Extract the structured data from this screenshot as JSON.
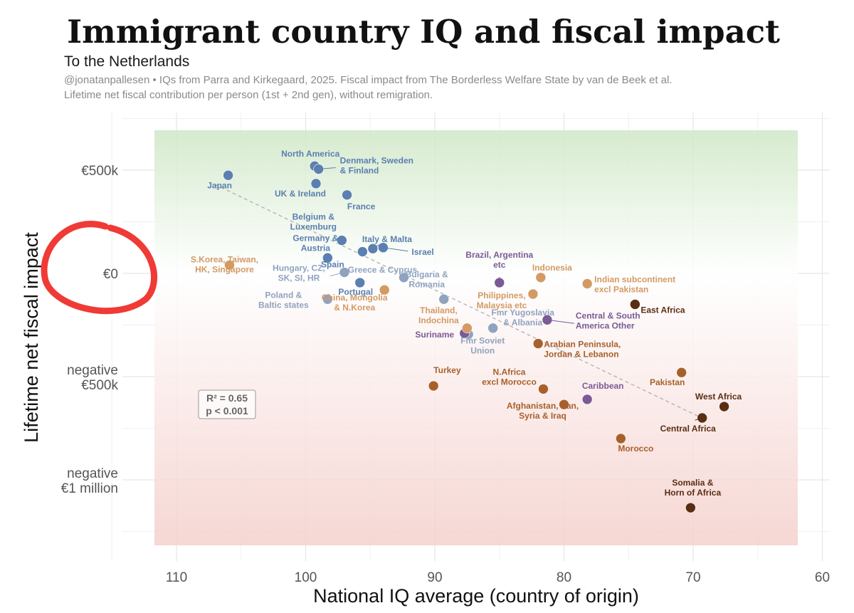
{
  "header": {
    "title": "Immigrant country IQ and fiscal impact",
    "subtitle": "To the Netherlands",
    "caption_line1": "@jonatanpallesen • IQs from Parra and Kirkegaard, 2025. Fiscal impact from The Borderless Welfare State by van de Beek et al.",
    "caption_line2": "Lifetime net fiscal contribution per person (1st + 2nd gen), without remigration."
  },
  "chart_data": {
    "type": "scatter",
    "title": "Immigrant country IQ and fiscal impact",
    "xlabel": "National IQ average (country of origin)",
    "ylabel": "Lifetime net fiscal impact",
    "xlim": [
      115,
      60
    ],
    "x_reversed": true,
    "ylim": [
      -1250,
      800
    ],
    "y_units": "thousand EUR",
    "x_ticks": [
      110,
      100,
      90,
      80,
      70,
      60
    ],
    "y_ticks": [
      {
        "value": 500,
        "label": [
          "€500k"
        ]
      },
      {
        "value": 0,
        "label": [
          "€0"
        ]
      },
      {
        "value": -500,
        "label": [
          "negative",
          "€500k"
        ]
      },
      {
        "value": -1000,
        "label": [
          "negative",
          "€1 million"
        ]
      }
    ],
    "background_bands": [
      {
        "name": "positive",
        "color": "#cfe7c6"
      },
      {
        "name": "negative",
        "color": "#f4d0cc"
      }
    ],
    "trendline": {
      "x": [
        107,
        69
      ],
      "y": [
        430,
        -710
      ],
      "style": "dashed"
    },
    "stats": {
      "r2": "R² = 0.65",
      "p": "p < 0.001"
    },
    "points": [
      {
        "label": [
          "Japan"
        ],
        "x": 106.0,
        "y": 475,
        "color": "#5b7fb0"
      },
      {
        "label": [
          "North America"
        ],
        "x": 99.3,
        "y": 520,
        "color": "#5b7fb0"
      },
      {
        "label": [
          "Denmark, Sweden",
          "& Finland"
        ],
        "x": 99.0,
        "y": 505,
        "color": "#5b7fb0"
      },
      {
        "label": [
          "UK & Ireland"
        ],
        "x": 99.2,
        "y": 435,
        "color": "#5b7fb0"
      },
      {
        "label": [
          "France"
        ],
        "x": 96.8,
        "y": 380,
        "color": "#5b7fb0"
      },
      {
        "label": [
          "Belgium &",
          "Luxemburg"
        ],
        "x": 97.2,
        "y": 160,
        "color": "#5b7fb0"
      },
      {
        "label": [
          "Italy & Malta"
        ],
        "x": 94.8,
        "y": 120,
        "color": "#5b7fb0"
      },
      {
        "label": [
          "Israel"
        ],
        "x": 94.0,
        "y": 125,
        "color": "#5b7fb0"
      },
      {
        "label": [
          "Germany &",
          "Austria"
        ],
        "x": 95.6,
        "y": 105,
        "color": "#5b7fb0"
      },
      {
        "label": [
          "Spain"
        ],
        "x": 98.3,
        "y": 75,
        "color": "#5b7fb0"
      },
      {
        "label": [
          "Portugal"
        ],
        "x": 95.8,
        "y": -45,
        "color": "#5b7fb0"
      },
      {
        "label": [
          "Greece & Cyprus"
        ],
        "x": 92.4,
        "y": -20,
        "color": "#8fa3bf"
      },
      {
        "label": [
          "Hungary, CZ,",
          "SK, SI, HR"
        ],
        "x": 97.0,
        "y": 5,
        "color": "#8fa3bf"
      },
      {
        "label": [
          "Poland &",
          "Baltic states"
        ],
        "x": 98.3,
        "y": -125,
        "color": "#8fa3bf"
      },
      {
        "label": [
          "Bulgaria &",
          "Romania"
        ],
        "x": 89.3,
        "y": -125,
        "color": "#8fa3bf"
      },
      {
        "label": [
          "Fmr Yugoslavia",
          "& Albania"
        ],
        "x": 85.5,
        "y": -265,
        "color": "#8fa3bf"
      },
      {
        "label": [
          "Fmr Soviet",
          "Union"
        ],
        "x": 87.4,
        "y": -295,
        "color": "#8fa3bf"
      },
      {
        "label": [
          "Brazil, Argentina",
          "etc"
        ],
        "x": 85.0,
        "y": -45,
        "color": "#7b5a96"
      },
      {
        "label": [
          "Central & South",
          "America Other"
        ],
        "x": 81.3,
        "y": -225,
        "color": "#7b5a96"
      },
      {
        "label": [
          "Suriname"
        ],
        "x": 87.7,
        "y": -290,
        "color": "#7b5a96"
      },
      {
        "label": [
          "Caribbean"
        ],
        "x": 78.2,
        "y": -610,
        "color": "#7b5a96"
      },
      {
        "label": [
          "S.Korea, Taiwan,",
          "HK, Singapore"
        ],
        "x": 105.9,
        "y": 40,
        "color": "#d39a63"
      },
      {
        "label": [
          "China, Mongolia",
          "& N.Korea"
        ],
        "x": 93.9,
        "y": -80,
        "color": "#d39a63"
      },
      {
        "label": [
          "Thailand,",
          "Indochina"
        ],
        "x": 87.5,
        "y": -265,
        "color": "#d39a63"
      },
      {
        "label": [
          "Indonesia"
        ],
        "x": 81.8,
        "y": -20,
        "color": "#d39a63"
      },
      {
        "label": [
          "Philippines,",
          "Malaysia etc"
        ],
        "x": 82.4,
        "y": -100,
        "color": "#d39a63"
      },
      {
        "label": [
          "Indian subcontinent",
          "excl Pakistan"
        ],
        "x": 78.2,
        "y": -50,
        "color": "#d39a63"
      },
      {
        "label": [
          "Arabian Peninsula,",
          "Jordan & Lebanon"
        ],
        "x": 82.0,
        "y": -340,
        "color": "#a8602b"
      },
      {
        "label": [
          "Turkey"
        ],
        "x": 90.1,
        "y": -545,
        "color": "#a8602b"
      },
      {
        "label": [
          "N.Africa",
          "excl Morocco"
        ],
        "x": 81.6,
        "y": -560,
        "color": "#a8602b"
      },
      {
        "label": [
          "Afghanistan, Iran,",
          "Syria & Iraq"
        ],
        "x": 80.0,
        "y": -635,
        "color": "#a8602b"
      },
      {
        "label": [
          "Pakistan"
        ],
        "x": 70.9,
        "y": -480,
        "color": "#a8602b"
      },
      {
        "label": [
          "Morocco"
        ],
        "x": 75.6,
        "y": -800,
        "color": "#a8602b"
      },
      {
        "label": [
          "East Africa"
        ],
        "x": 74.5,
        "y": -150,
        "color": "#5a2e12"
      },
      {
        "label": [
          "West Africa"
        ],
        "x": 67.6,
        "y": -645,
        "color": "#5a2e12"
      },
      {
        "label": [
          "Central Africa"
        ],
        "x": 69.3,
        "y": -700,
        "color": "#5a2e12"
      },
      {
        "label": [
          "Somalia &",
          "Horn of Africa"
        ],
        "x": 70.2,
        "y": -1135,
        "color": "#5a2e12"
      }
    ]
  }
}
